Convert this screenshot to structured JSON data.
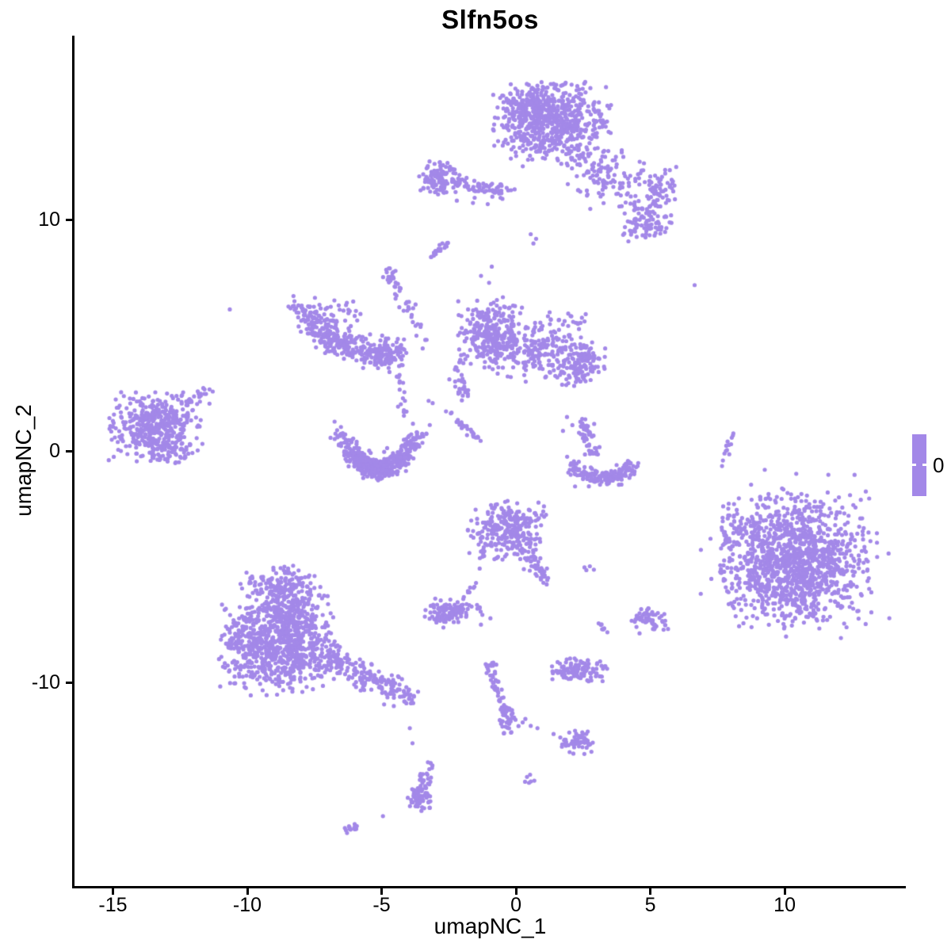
{
  "title": "Slfn5os",
  "axes": {
    "x": {
      "label": "umapNC_1"
    },
    "y": {
      "label": "umapNC_2"
    }
  },
  "legend": {
    "label": "0",
    "color": "#A388E8"
  },
  "colors": {
    "point": "#A388E8",
    "axis": "#000000",
    "text": "#000000",
    "background": "#FFFFFF"
  },
  "chart_data": {
    "type": "scatter",
    "title": "Slfn5os",
    "xlabel": "umapNC_1",
    "ylabel": "umapNC_2",
    "xlim": [
      -16.43,
      14.51
    ],
    "ylim": [
      -18.77,
      17.98
    ],
    "x_ticks": [
      -15,
      -10,
      -5,
      0,
      5,
      10
    ],
    "y_ticks": [
      -10,
      0,
      10
    ],
    "grid": false,
    "legend_position": "right",
    "point_color": "#A388E8",
    "point_radius_px": 2.6,
    "seed": 42,
    "clusters": [
      {
        "type": "gauss",
        "cx": 1.35,
        "cy": 14.2,
        "sx": 1.0,
        "sy": 0.85,
        "n": 600,
        "clip": 2.2
      },
      {
        "type": "gauss",
        "cx": 0.4,
        "cy": 14.9,
        "sx": 0.55,
        "sy": 0.5,
        "n": 150,
        "clip": 2.0
      },
      {
        "type": "gauss",
        "cx": 3.4,
        "cy": 11.9,
        "sx": 0.75,
        "sy": 0.75,
        "n": 70,
        "clip": 2.2
      },
      {
        "type": "line",
        "x1": 2.2,
        "y1": 12.8,
        "x2": 4.3,
        "y2": 10.8,
        "jitter": 0.3,
        "n": 50
      },
      {
        "type": "gauss",
        "cx": 4.9,
        "cy": 9.9,
        "sx": 0.5,
        "sy": 0.45,
        "n": 90,
        "clip": 2.0
      },
      {
        "type": "gauss",
        "cx": 5.3,
        "cy": 11.4,
        "sx": 0.45,
        "sy": 0.5,
        "n": 70,
        "clip": 2.0
      },
      {
        "type": "points",
        "pts": [
          [
            6.65,
            7.2
          ]
        ]
      },
      {
        "type": "gauss",
        "cx": -2.95,
        "cy": 11.85,
        "sx": 0.32,
        "sy": 0.38,
        "n": 110,
        "clip": 2.2
      },
      {
        "type": "line",
        "x1": -2.5,
        "y1": 11.75,
        "x2": -0.35,
        "y2": 11.15,
        "jitter": 0.17,
        "n": 70
      },
      {
        "type": "points",
        "pts": [
          [
            -2.2,
            10.85
          ],
          [
            -1.6,
            10.75
          ],
          [
            -1.05,
            10.7
          ],
          [
            -3.55,
            11.3
          ],
          [
            -3.6,
            11.9
          ]
        ]
      },
      {
        "type": "line",
        "x1": -3.1,
        "y1": 8.45,
        "x2": -2.55,
        "y2": 9.05,
        "jitter": 0.07,
        "n": 22
      },
      {
        "type": "polyline",
        "pts": [
          [
            -8.0,
            6.4
          ],
          [
            -7.5,
            5.5
          ],
          [
            -6.8,
            4.75
          ],
          [
            -5.9,
            4.3
          ],
          [
            -5.0,
            4.15
          ],
          [
            -4.3,
            4.35
          ]
        ],
        "jitter": 0.3,
        "n": 300
      },
      {
        "type": "gauss",
        "cx": -6.6,
        "cy": 5.7,
        "sx": 0.6,
        "sy": 0.5,
        "n": 50,
        "clip": 2.0
      },
      {
        "type": "gauss",
        "cx": -4.85,
        "cy": 4.25,
        "sx": 0.4,
        "sy": 0.3,
        "n": 70,
        "clip": 2.2
      },
      {
        "type": "line",
        "x1": -4.7,
        "y1": 7.6,
        "x2": -3.3,
        "y2": 4.6,
        "jitter": 0.12,
        "n": 30
      },
      {
        "type": "gauss",
        "cx": -4.62,
        "cy": 7.5,
        "sx": 0.18,
        "sy": 0.25,
        "n": 20,
        "clip": 2.0
      },
      {
        "type": "line",
        "x1": -4.35,
        "y1": 3.4,
        "x2": -4.2,
        "y2": 1.7,
        "jitter": 0.1,
        "n": 18
      },
      {
        "type": "parabola",
        "x1": -6.6,
        "x2": -3.6,
        "a": 0.73,
        "vx": -5.1,
        "vy": -0.78,
        "jitter": 0.18,
        "n": 330
      },
      {
        "type": "parabola",
        "x1": -6.0,
        "x2": -4.2,
        "a": 0.73,
        "vx": -5.1,
        "vy": -0.72,
        "jitter": 0.22,
        "n": 170
      },
      {
        "type": "points",
        "pts": [
          [
            -3.25,
            2.2
          ],
          [
            -3.1,
            2.1
          ],
          [
            -6.75,
            1.3
          ],
          [
            -6.9,
            0.6
          ]
        ]
      },
      {
        "type": "gauss",
        "cx": -0.95,
        "cy": 5.15,
        "sx": 0.55,
        "sy": 0.72,
        "n": 280,
        "clip": 2.2
      },
      {
        "type": "gauss",
        "cx": 0.55,
        "cy": 4.45,
        "sx": 0.7,
        "sy": 0.65,
        "n": 180,
        "clip": 2.2
      },
      {
        "type": "gauss",
        "cx": 2.3,
        "cy": 3.9,
        "sx": 0.5,
        "sy": 0.5,
        "n": 150,
        "clip": 2.2
      },
      {
        "type": "gauss",
        "cx": 1.9,
        "cy": 5.6,
        "sx": 0.5,
        "sy": 0.4,
        "n": 25,
        "clip": 2.0
      },
      {
        "type": "line",
        "x1": -2.25,
        "y1": 4.4,
        "x2": -1.9,
        "y2": 2.4,
        "jitter": 0.15,
        "n": 35
      },
      {
        "type": "line",
        "x1": -2.6,
        "y1": 1.75,
        "x2": -1.3,
        "y2": 0.45,
        "jitter": 0.06,
        "n": 28
      },
      {
        "type": "points",
        "pts": [
          [
            -1.3,
            7.6
          ],
          [
            -0.9,
            8.0
          ],
          [
            -1.0,
            7.3
          ],
          [
            0.55,
            9.4
          ],
          [
            0.75,
            9.2
          ],
          [
            0.65,
            9.0
          ]
        ]
      },
      {
        "type": "gauss",
        "cx": -13.4,
        "cy": 1.1,
        "sx": 0.8,
        "sy": 0.7,
        "n": 420,
        "clip": 2.2
      },
      {
        "type": "line",
        "x1": -12.3,
        "y1": 1.9,
        "x2": -11.4,
        "y2": 2.75,
        "jitter": 0.13,
        "n": 25
      },
      {
        "type": "gauss",
        "cx": -12.8,
        "cy": 0.0,
        "sx": 0.55,
        "sy": 0.3,
        "n": 40,
        "clip": 2.0
      },
      {
        "type": "line",
        "x1": 2.45,
        "y1": 1.35,
        "x2": 2.95,
        "y2": -0.2,
        "jitter": 0.12,
        "n": 55
      },
      {
        "type": "parabola",
        "x1": 2.0,
        "x2": 4.35,
        "a": 0.45,
        "vx": 3.2,
        "vy": -1.15,
        "jitter": 0.16,
        "n": 160
      },
      {
        "type": "points",
        "pts": [
          [
            1.9,
            1.5
          ],
          [
            2.1,
            1.15
          ],
          [
            1.75,
            0.9
          ],
          [
            2.2,
            -1.5
          ],
          [
            1.95,
            -0.9
          ]
        ]
      },
      {
        "type": "line",
        "x1": 7.7,
        "y1": -0.35,
        "x2": 8.2,
        "y2": 1.05,
        "jitter": 0.05,
        "n": 12
      },
      {
        "type": "points",
        "pts": [
          [
            7.67,
            -0.62
          ]
        ]
      },
      {
        "type": "gauss",
        "cx": 10.4,
        "cy": -4.7,
        "sx": 1.35,
        "sy": 1.4,
        "n": 1150,
        "clip": 2.1
      },
      {
        "type": "gauss",
        "cx": 10.2,
        "cy": -4.5,
        "sx": 1.7,
        "sy": 1.75,
        "n": 150,
        "clip": 2.2
      },
      {
        "type": "gauss",
        "cx": 8.4,
        "cy": -3.3,
        "sx": 0.5,
        "sy": 0.7,
        "n": 40,
        "clip": 2.0
      },
      {
        "type": "gauss",
        "cx": -0.35,
        "cy": -3.4,
        "sx": 0.72,
        "sy": 0.6,
        "n": 290,
        "clip": 2.2
      },
      {
        "type": "line",
        "x1": 0.35,
        "y1": -4.35,
        "x2": 1.15,
        "y2": -5.65,
        "jitter": 0.15,
        "n": 50
      },
      {
        "type": "points",
        "pts": [
          [
            -1.35,
            -5.05
          ]
        ]
      },
      {
        "type": "points",
        "pts": [
          [
            2.55,
            -5.0
          ],
          [
            2.75,
            -4.95
          ],
          [
            2.9,
            -5.1
          ],
          [
            2.62,
            -5.12
          ]
        ]
      },
      {
        "type": "gauss",
        "cx": -2.4,
        "cy": -6.9,
        "sx": 0.5,
        "sy": 0.28,
        "n": 120,
        "clip": 2.2
      },
      {
        "type": "line",
        "x1": -1.9,
        "y1": -6.3,
        "x2": -1.55,
        "y2": -5.75,
        "jitter": 0.07,
        "n": 10
      },
      {
        "type": "points",
        "pts": [
          [
            -1.25,
            -7.05
          ],
          [
            -0.95,
            -7.2
          ],
          [
            -2.7,
            -7.6
          ]
        ]
      },
      {
        "type": "gauss",
        "cx": 4.95,
        "cy": -7.3,
        "sx": 0.38,
        "sy": 0.28,
        "n": 55,
        "clip": 2.0
      },
      {
        "type": "points",
        "pts": [
          [
            4.45,
            -7.25
          ],
          [
            4.6,
            -7.85
          ]
        ]
      },
      {
        "type": "line",
        "x1": 3.08,
        "y1": -7.45,
        "x2": 3.45,
        "y2": -7.9,
        "jitter": 0.06,
        "n": 7
      },
      {
        "type": "gauss",
        "cx": -8.75,
        "cy": -8.45,
        "sx": 1.05,
        "sy": 0.95,
        "n": 780,
        "clip": 2.2
      },
      {
        "type": "gauss",
        "cx": -8.6,
        "cy": -5.95,
        "sx": 0.75,
        "sy": 0.5,
        "n": 190,
        "clip": 2.2
      },
      {
        "type": "gauss",
        "cx": -8.5,
        "cy": -7.0,
        "sx": 0.8,
        "sy": 0.5,
        "n": 120,
        "clip": 2.0
      },
      {
        "type": "polyline",
        "pts": [
          [
            -7.0,
            -8.9
          ],
          [
            -5.8,
            -9.6
          ],
          [
            -4.8,
            -10.1
          ],
          [
            -4.0,
            -10.55
          ]
        ],
        "jitter": 0.25,
        "n": 190
      },
      {
        "type": "gauss",
        "cx": -10.4,
        "cy": -8.3,
        "sx": 0.35,
        "sy": 0.8,
        "n": 45,
        "clip": 2.0
      },
      {
        "type": "gauss",
        "cx": 2.3,
        "cy": -9.45,
        "sx": 0.55,
        "sy": 0.27,
        "n": 110,
        "clip": 2.0
      },
      {
        "type": "polyline",
        "pts": [
          [
            -1.0,
            -9.3
          ],
          [
            -0.75,
            -10.2
          ],
          [
            -0.45,
            -11.0
          ],
          [
            -0.3,
            -11.9
          ]
        ],
        "jitter": 0.09,
        "n": 40
      },
      {
        "type": "gauss",
        "cx": -0.3,
        "cy": -11.6,
        "sx": 0.2,
        "sy": 0.33,
        "n": 35,
        "clip": 2.0
      },
      {
        "type": "gauss",
        "cx": -1.0,
        "cy": -9.25,
        "sx": 0.15,
        "sy": 0.12,
        "n": 10,
        "clip": 2.0
      },
      {
        "type": "points",
        "pts": [
          [
            0.25,
            -11.7
          ],
          [
            0.55,
            -11.85
          ],
          [
            0.8,
            -11.95
          ],
          [
            0.35,
            -11.55
          ]
        ]
      },
      {
        "type": "gauss",
        "cx": 2.25,
        "cy": -12.55,
        "sx": 0.32,
        "sy": 0.27,
        "n": 55,
        "clip": 2.0
      },
      {
        "type": "points",
        "pts": [
          [
            1.4,
            -12.2
          ],
          [
            1.65,
            -12.35
          ],
          [
            1.85,
            -12.45
          ]
        ]
      },
      {
        "type": "gauss",
        "cx": 0.5,
        "cy": -14.1,
        "sx": 0.12,
        "sy": 0.15,
        "n": 6,
        "clip": 2.0
      },
      {
        "type": "polyline",
        "pts": [
          [
            -3.2,
            -13.55
          ],
          [
            -3.45,
            -14.3
          ],
          [
            -3.7,
            -14.9
          ],
          [
            -3.55,
            -15.35
          ]
        ],
        "jitter": 0.13,
        "n": 70
      },
      {
        "type": "gauss",
        "cx": -3.6,
        "cy": -15.0,
        "sx": 0.22,
        "sy": 0.25,
        "n": 30,
        "clip": 2.0
      },
      {
        "type": "points",
        "pts": [
          [
            -3.95,
            -11.95
          ],
          [
            -3.85,
            -12.6
          ]
        ]
      },
      {
        "type": "line",
        "x1": -6.35,
        "y1": -16.35,
        "x2": -5.85,
        "y2": -16.15,
        "jitter": 0.07,
        "n": 14
      },
      {
        "type": "points",
        "pts": [
          [
            -10.65,
            6.15
          ],
          [
            -4.95,
            -15.75
          ]
        ]
      }
    ]
  }
}
